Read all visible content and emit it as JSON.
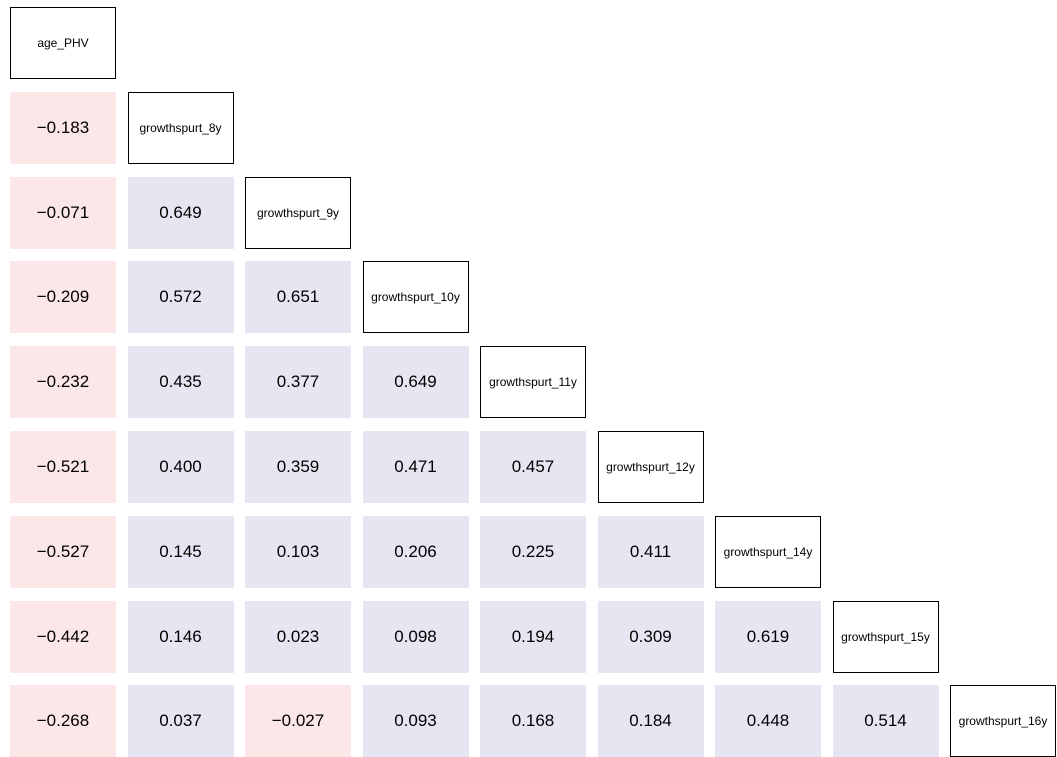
{
  "colors": {
    "positive": "#e6e6f2",
    "negative": "#fbe6e8",
    "diagonal_border": "#000000",
    "text": "#000000"
  },
  "chart_data": {
    "type": "table",
    "title": "",
    "variables": [
      "age_PHV",
      "growthspurt_8y",
      "growthspurt_9y",
      "growthspurt_10y",
      "growthspurt_11y",
      "growthspurt_12y",
      "growthspurt_14y",
      "growthspurt_15y",
      "growthspurt_16y"
    ],
    "lower_triangle": [
      [],
      [
        "−0.183"
      ],
      [
        "−0.071",
        "0.649"
      ],
      [
        "−0.209",
        "0.572",
        "0.651"
      ],
      [
        "−0.232",
        "0.435",
        "0.377",
        "0.649"
      ],
      [
        "−0.521",
        "0.400",
        "0.359",
        "0.471",
        "0.457"
      ],
      [
        "−0.527",
        "0.145",
        "0.103",
        "0.206",
        "0.225",
        "0.411"
      ],
      [
        "−0.442",
        "0.146",
        "0.023",
        "0.098",
        "0.194",
        "0.309",
        "0.619"
      ],
      [
        "−0.268",
        "0.037",
        "−0.027",
        "0.093",
        "0.168",
        "0.184",
        "0.448",
        "0.514"
      ]
    ],
    "values": [
      [],
      [
        -0.183
      ],
      [
        -0.071,
        0.649
      ],
      [
        -0.209,
        0.572,
        0.651
      ],
      [
        -0.232,
        0.435,
        0.377,
        0.649
      ],
      [
        -0.521,
        0.4,
        0.359,
        0.471,
        0.457
      ],
      [
        -0.527,
        0.145,
        0.103,
        0.206,
        0.225,
        0.411
      ],
      [
        -0.442,
        0.146,
        0.023,
        0.098,
        0.194,
        0.309,
        0.619
      ],
      [
        -0.268,
        0.037,
        -0.027,
        0.093,
        0.168,
        0.184,
        0.448,
        0.514
      ]
    ]
  }
}
